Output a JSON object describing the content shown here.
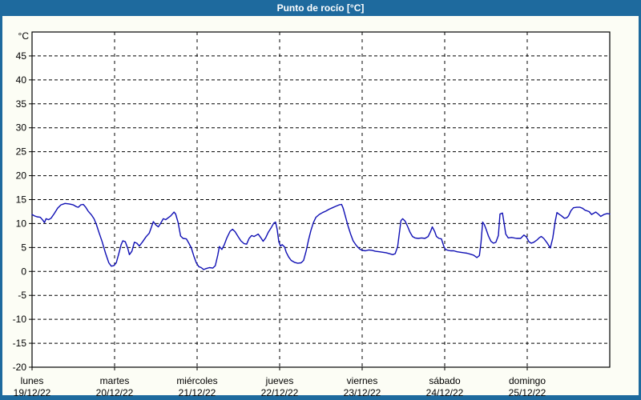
{
  "header": {
    "title": "Punto de rocío [°C]"
  },
  "colors": {
    "frame_blue": "#1e6a9e",
    "content_bg": "#fcfdf5",
    "plot_bg": "#ffffff",
    "grid": "#000000",
    "axis": "#000000",
    "line": "#0f0fb4",
    "label_text": "#000000",
    "title_text": "#ffffff"
  },
  "chart_data": {
    "type": "line",
    "title": "Punto de rocío [°C]",
    "ylabel": "°C",
    "ylim": [
      -20,
      50
    ],
    "y_ticks": [
      45,
      40,
      35,
      30,
      25,
      20,
      15,
      10,
      5,
      0,
      -5,
      -10,
      -15,
      -20
    ],
    "xlim_days": [
      0,
      7
    ],
    "grid": "dashed",
    "legend_position": "none",
    "x_day_labels": [
      {
        "name": "lunes",
        "date": "19/12/22",
        "t": 0
      },
      {
        "name": "martes",
        "date": "20/12/22",
        "t": 1
      },
      {
        "name": "miércoles",
        "date": "21/12/22",
        "t": 2
      },
      {
        "name": "jueves",
        "date": "22/12/22",
        "t": 3
      },
      {
        "name": "viernes",
        "date": "23/12/22",
        "t": 4
      },
      {
        "name": "sábado",
        "date": "24/12/22",
        "t": 5
      },
      {
        "name": "domingo",
        "date": "25/12/22",
        "t": 6
      }
    ],
    "series": [
      {
        "name": "Punto de rocío",
        "points": [
          [
            0.0,
            11.9
          ],
          [
            0.03,
            11.6
          ],
          [
            0.06,
            11.4
          ],
          [
            0.1,
            11.3
          ],
          [
            0.13,
            10.7
          ],
          [
            0.15,
            10.2
          ],
          [
            0.17,
            11.0
          ],
          [
            0.2,
            10.8
          ],
          [
            0.23,
            11.1
          ],
          [
            0.27,
            12.1
          ],
          [
            0.31,
            13.2
          ],
          [
            0.35,
            13.9
          ],
          [
            0.4,
            14.2
          ],
          [
            0.45,
            14.1
          ],
          [
            0.5,
            13.9
          ],
          [
            0.54,
            13.5
          ],
          [
            0.56,
            13.4
          ],
          [
            0.59,
            13.9
          ],
          [
            0.62,
            14.0
          ],
          [
            0.65,
            13.4
          ],
          [
            0.68,
            12.6
          ],
          [
            0.72,
            11.8
          ],
          [
            0.75,
            11.0
          ],
          [
            0.78,
            9.8
          ],
          [
            0.81,
            8.2
          ],
          [
            0.85,
            6.2
          ],
          [
            0.89,
            3.8
          ],
          [
            0.93,
            1.8
          ],
          [
            0.96,
            1.1
          ],
          [
            0.99,
            1.2
          ],
          [
            1.02,
            1.8
          ],
          [
            1.05,
            3.6
          ],
          [
            1.08,
            5.6
          ],
          [
            1.1,
            6.4
          ],
          [
            1.13,
            6.2
          ],
          [
            1.16,
            4.8
          ],
          [
            1.18,
            3.5
          ],
          [
            1.21,
            4.2
          ],
          [
            1.24,
            6.1
          ],
          [
            1.27,
            5.9
          ],
          [
            1.3,
            5.3
          ],
          [
            1.34,
            6.2
          ],
          [
            1.38,
            7.2
          ],
          [
            1.42,
            8.0
          ],
          [
            1.45,
            9.4
          ],
          [
            1.47,
            10.4
          ],
          [
            1.5,
            9.7
          ],
          [
            1.53,
            9.3
          ],
          [
            1.56,
            10.1
          ],
          [
            1.59,
            11.0
          ],
          [
            1.62,
            10.8
          ],
          [
            1.65,
            11.2
          ],
          [
            1.68,
            11.6
          ],
          [
            1.72,
            12.4
          ],
          [
            1.74,
            12.0
          ],
          [
            1.77,
            10.2
          ],
          [
            1.8,
            7.4
          ],
          [
            1.83,
            6.9
          ],
          [
            1.87,
            6.8
          ],
          [
            1.9,
            5.9
          ],
          [
            1.93,
            4.9
          ],
          [
            1.96,
            3.2
          ],
          [
            1.99,
            1.8
          ],
          [
            2.02,
            1.0
          ],
          [
            2.05,
            0.8
          ],
          [
            2.08,
            0.4
          ],
          [
            2.11,
            0.6
          ],
          [
            2.15,
            0.8
          ],
          [
            2.19,
            0.7
          ],
          [
            2.22,
            1.2
          ],
          [
            2.25,
            3.4
          ],
          [
            2.27,
            5.2
          ],
          [
            2.3,
            4.6
          ],
          [
            2.33,
            5.6
          ],
          [
            2.36,
            7.0
          ],
          [
            2.4,
            8.4
          ],
          [
            2.43,
            8.8
          ],
          [
            2.46,
            8.3
          ],
          [
            2.5,
            7.2
          ],
          [
            2.53,
            6.4
          ],
          [
            2.57,
            5.8
          ],
          [
            2.6,
            5.7
          ],
          [
            2.63,
            6.9
          ],
          [
            2.66,
            7.5
          ],
          [
            2.69,
            7.3
          ],
          [
            2.72,
            7.6
          ],
          [
            2.74,
            7.8
          ],
          [
            2.77,
            7.1
          ],
          [
            2.8,
            6.3
          ],
          [
            2.83,
            7.0
          ],
          [
            2.86,
            8.1
          ],
          [
            2.9,
            9.2
          ],
          [
            2.93,
            10.1
          ],
          [
            2.95,
            10.3
          ],
          [
            2.97,
            8.8
          ],
          [
            2.99,
            6.2
          ],
          [
            3.01,
            5.3
          ],
          [
            3.03,
            5.6
          ],
          [
            3.06,
            5.1
          ],
          [
            3.08,
            4.0
          ],
          [
            3.11,
            3.0
          ],
          [
            3.14,
            2.3
          ],
          [
            3.18,
            1.9
          ],
          [
            3.22,
            1.7
          ],
          [
            3.26,
            1.8
          ],
          [
            3.29,
            2.3
          ],
          [
            3.32,
            4.2
          ],
          [
            3.35,
            6.6
          ],
          [
            3.38,
            8.6
          ],
          [
            3.41,
            10.2
          ],
          [
            3.44,
            11.3
          ],
          [
            3.48,
            11.9
          ],
          [
            3.52,
            12.3
          ],
          [
            3.56,
            12.6
          ],
          [
            3.6,
            13.0
          ],
          [
            3.64,
            13.3
          ],
          [
            3.68,
            13.6
          ],
          [
            3.72,
            13.9
          ],
          [
            3.75,
            14.0
          ],
          [
            3.77,
            13.2
          ],
          [
            3.8,
            11.3
          ],
          [
            3.83,
            9.4
          ],
          [
            3.86,
            7.8
          ],
          [
            3.89,
            6.4
          ],
          [
            3.93,
            5.4
          ],
          [
            3.97,
            4.7
          ],
          [
            4.0,
            4.4
          ],
          [
            4.04,
            4.3
          ],
          [
            4.08,
            4.5
          ],
          [
            4.12,
            4.4
          ],
          [
            4.16,
            4.2
          ],
          [
            4.21,
            4.1
          ],
          [
            4.25,
            4.0
          ],
          [
            4.29,
            3.9
          ],
          [
            4.33,
            3.7
          ],
          [
            4.37,
            3.5
          ],
          [
            4.4,
            3.7
          ],
          [
            4.43,
            5.2
          ],
          [
            4.45,
            8.0
          ],
          [
            4.47,
            10.6
          ],
          [
            4.49,
            11.0
          ],
          [
            4.52,
            10.5
          ],
          [
            4.55,
            9.4
          ],
          [
            4.58,
            8.2
          ],
          [
            4.61,
            7.3
          ],
          [
            4.64,
            7.0
          ],
          [
            4.68,
            6.9
          ],
          [
            4.72,
            7.0
          ],
          [
            4.76,
            6.9
          ],
          [
            4.8,
            7.3
          ],
          [
            4.83,
            8.4
          ],
          [
            4.85,
            9.3
          ],
          [
            4.88,
            8.3
          ],
          [
            4.9,
            7.3
          ],
          [
            4.93,
            6.9
          ],
          [
            4.96,
            6.8
          ],
          [
            4.99,
            5.2
          ],
          [
            5.01,
            4.6
          ],
          [
            5.04,
            4.4
          ],
          [
            5.07,
            4.3
          ],
          [
            5.11,
            4.3
          ],
          [
            5.15,
            4.1
          ],
          [
            5.19,
            4.0
          ],
          [
            5.23,
            3.9
          ],
          [
            5.27,
            3.8
          ],
          [
            5.31,
            3.6
          ],
          [
            5.35,
            3.4
          ],
          [
            5.39,
            2.9
          ],
          [
            5.42,
            3.3
          ],
          [
            5.44,
            6.0
          ],
          [
            5.46,
            10.3
          ],
          [
            5.48,
            9.8
          ],
          [
            5.5,
            8.9
          ],
          [
            5.53,
            7.4
          ],
          [
            5.56,
            6.3
          ],
          [
            5.59,
            5.9
          ],
          [
            5.62,
            6.1
          ],
          [
            5.65,
            7.5
          ],
          [
            5.67,
            12.0
          ],
          [
            5.7,
            12.2
          ],
          [
            5.72,
            10.0
          ],
          [
            5.74,
            7.8
          ],
          [
            5.77,
            7.0
          ],
          [
            5.81,
            7.1
          ],
          [
            5.87,
            6.9
          ],
          [
            5.92,
            6.9
          ],
          [
            5.96,
            7.6
          ],
          [
            5.99,
            7.2
          ],
          [
            6.02,
            6.2
          ],
          [
            6.05,
            5.9
          ],
          [
            6.08,
            6.1
          ],
          [
            6.12,
            6.6
          ],
          [
            6.15,
            7.1
          ],
          [
            6.17,
            7.3
          ],
          [
            6.2,
            6.9
          ],
          [
            6.24,
            6.0
          ],
          [
            6.28,
            4.9
          ],
          [
            6.31,
            7.0
          ],
          [
            6.34,
            10.5
          ],
          [
            6.36,
            12.3
          ],
          [
            6.39,
            11.9
          ],
          [
            6.41,
            11.7
          ],
          [
            6.45,
            11.1
          ],
          [
            6.48,
            11.2
          ],
          [
            6.5,
            11.6
          ],
          [
            6.53,
            12.7
          ],
          [
            6.56,
            13.3
          ],
          [
            6.6,
            13.4
          ],
          [
            6.64,
            13.4
          ],
          [
            6.67,
            13.2
          ],
          [
            6.7,
            12.8
          ],
          [
            6.75,
            12.5
          ],
          [
            6.78,
            11.9
          ],
          [
            6.83,
            12.4
          ],
          [
            6.86,
            12.0
          ],
          [
            6.89,
            11.5
          ],
          [
            6.93,
            11.9
          ],
          [
            6.97,
            12.1
          ],
          [
            7.0,
            12.0
          ]
        ]
      }
    ]
  }
}
